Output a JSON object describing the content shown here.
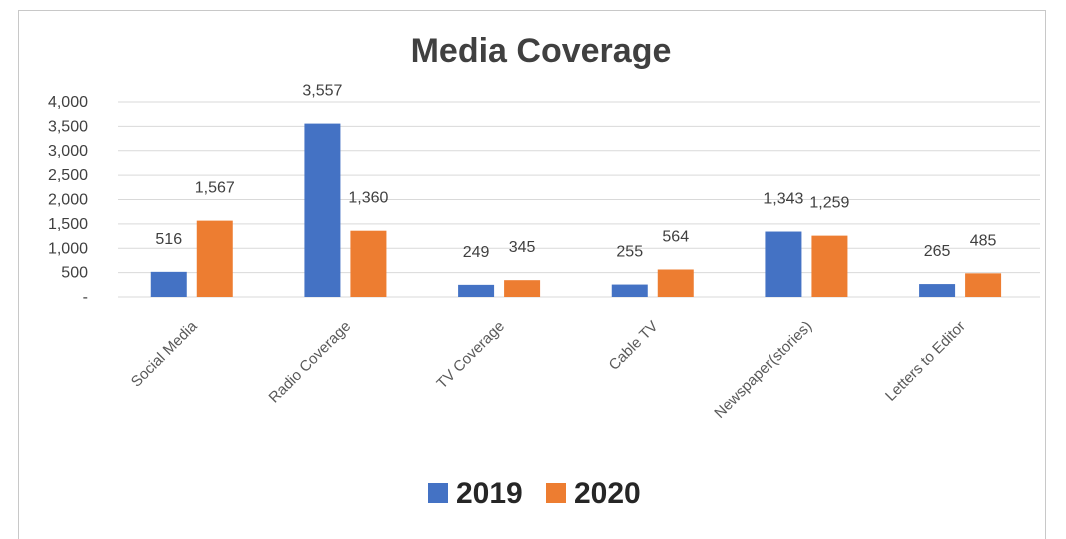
{
  "chart_data": {
    "type": "bar",
    "title": "Media Coverage",
    "xlabel": "",
    "ylabel": "",
    "categories": [
      "Social Media",
      "Radio Coverage",
      "TV Coverage",
      "Cable TV",
      "Newspaper(stories)",
      "Letters to Editor"
    ],
    "series": [
      {
        "name": "2019",
        "color": "#4472c4",
        "values": [
          516,
          3557,
          249,
          255,
          1343,
          265
        ],
        "labels": [
          "516",
          "3,557",
          "249",
          "255",
          "1,343",
          "265"
        ]
      },
      {
        "name": "2020",
        "color": "#ed7d31",
        "values": [
          1567,
          1360,
          345,
          564,
          1259,
          485
        ],
        "labels": [
          "1,567",
          "1,360",
          "345",
          "564",
          "1,259",
          "485"
        ]
      }
    ],
    "ylim": [
      0,
      4000
    ],
    "yticks": [
      {
        "value": 0,
        "label": "-"
      },
      {
        "value": 500,
        "label": "500"
      },
      {
        "value": 1000,
        "label": "1,000"
      },
      {
        "value": 1500,
        "label": "1,500"
      },
      {
        "value": 2000,
        "label": "2,000"
      },
      {
        "value": 2500,
        "label": "2,500"
      },
      {
        "value": 3000,
        "label": "3,000"
      },
      {
        "value": 3500,
        "label": "3,500"
      },
      {
        "value": 4000,
        "label": "4,000"
      }
    ],
    "grid": true,
    "legend_position": "bottom",
    "gridline_color": "#d9d9d9"
  }
}
